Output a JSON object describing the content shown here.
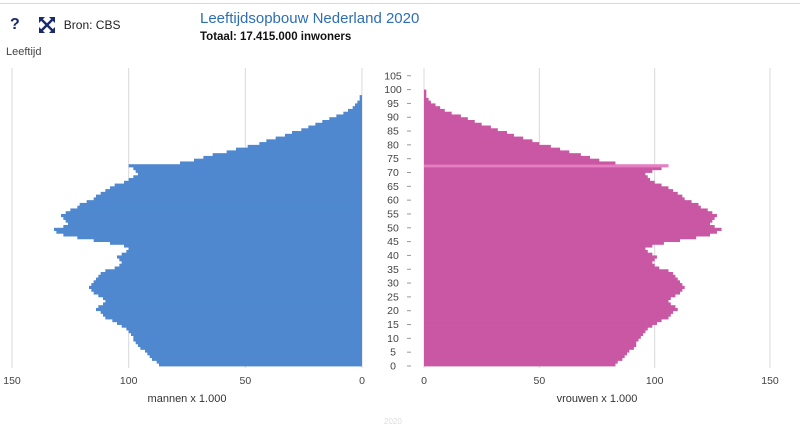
{
  "toolbar": {
    "help_label": "?",
    "source_label": "Bron: CBS",
    "icons": [
      "help-icon",
      "expand-icon"
    ]
  },
  "header": {
    "title": "Leeftijdsopbouw Nederland 2020",
    "subtitle": "Totaal: 17.415.000 inwoners"
  },
  "colors": {
    "men": "#4f88cf",
    "women": "#c957a3",
    "highlight": "#e57fc2",
    "title": "#2d6fb5"
  },
  "footer_faint": "2020",
  "chart_data": {
    "type": "bar",
    "orientation": "horizontal-pyramid",
    "title": "Leeftijdsopbouw Nederland 2020",
    "ylabel": "Leeftijd",
    "left_xlabel": "mannen x 1.000",
    "right_xlabel": "vrouwen x 1.000",
    "x_ticks_left": [
      "150",
      "100",
      "50",
      "0"
    ],
    "x_ticks_right": [
      "0",
      "50",
      "100",
      "150"
    ],
    "y_ticks": [
      "0",
      "5",
      "10",
      "15",
      "20",
      "25",
      "30",
      "35",
      "40",
      "45",
      "50",
      "55",
      "60",
      "65",
      "70",
      "75",
      "80",
      "85",
      "90",
      "95",
      "100",
      "105"
    ],
    "xlim": [
      0,
      150
    ],
    "ylim": [
      0,
      106
    ],
    "grid": true,
    "highlight_age": 72,
    "series": [
      {
        "name": "mannen",
        "values": [
          87,
          88,
          90,
          91,
          92,
          93,
          95,
          96,
          97,
          98,
          98,
          99,
          100,
          101,
          103,
          105,
          107,
          110,
          111,
          112,
          114,
          113,
          111,
          110,
          111,
          113,
          115,
          116,
          117,
          116,
          115,
          114,
          113,
          112,
          110,
          106,
          104,
          103,
          104,
          105,
          103,
          101,
          100,
          102,
          108,
          115,
          122,
          128,
          131,
          132,
          128,
          126,
          127,
          128,
          129,
          127,
          125,
          122,
          121,
          118,
          115,
          114,
          112,
          110,
          108,
          106,
          102,
          100,
          98,
          96,
          97,
          98,
          100,
          78,
          72,
          68,
          64,
          58,
          54,
          49,
          44,
          41,
          37,
          33,
          30,
          26,
          23,
          20,
          17,
          14,
          11,
          8,
          6,
          4,
          3,
          2,
          1,
          1,
          0,
          0,
          0,
          0,
          0,
          0,
          0,
          0
        ]
      },
      {
        "name": "vrouwen",
        "values": [
          83,
          84,
          86,
          87,
          88,
          89,
          91,
          92,
          92,
          93,
          94,
          95,
          96,
          97,
          99,
          101,
          103,
          106,
          107,
          108,
          110,
          109,
          107,
          106,
          107,
          109,
          111,
          112,
          113,
          112,
          111,
          110,
          109,
          108,
          106,
          102,
          100,
          99,
          100,
          101,
          99,
          97,
          96,
          99,
          104,
          111,
          118,
          124,
          127,
          129,
          126,
          124,
          125,
          126,
          127,
          125,
          123,
          120,
          119,
          116,
          113,
          112,
          110,
          108,
          106,
          103,
          100,
          98,
          97,
          96,
          99,
          103,
          106,
          83,
          76,
          72,
          68,
          63,
          59,
          55,
          50,
          47,
          43,
          39,
          36,
          32,
          29,
          25,
          22,
          19,
          16,
          12,
          9,
          7,
          5,
          3,
          2,
          1,
          1,
          1,
          0,
          0,
          0,
          0,
          0,
          0
        ]
      }
    ]
  }
}
